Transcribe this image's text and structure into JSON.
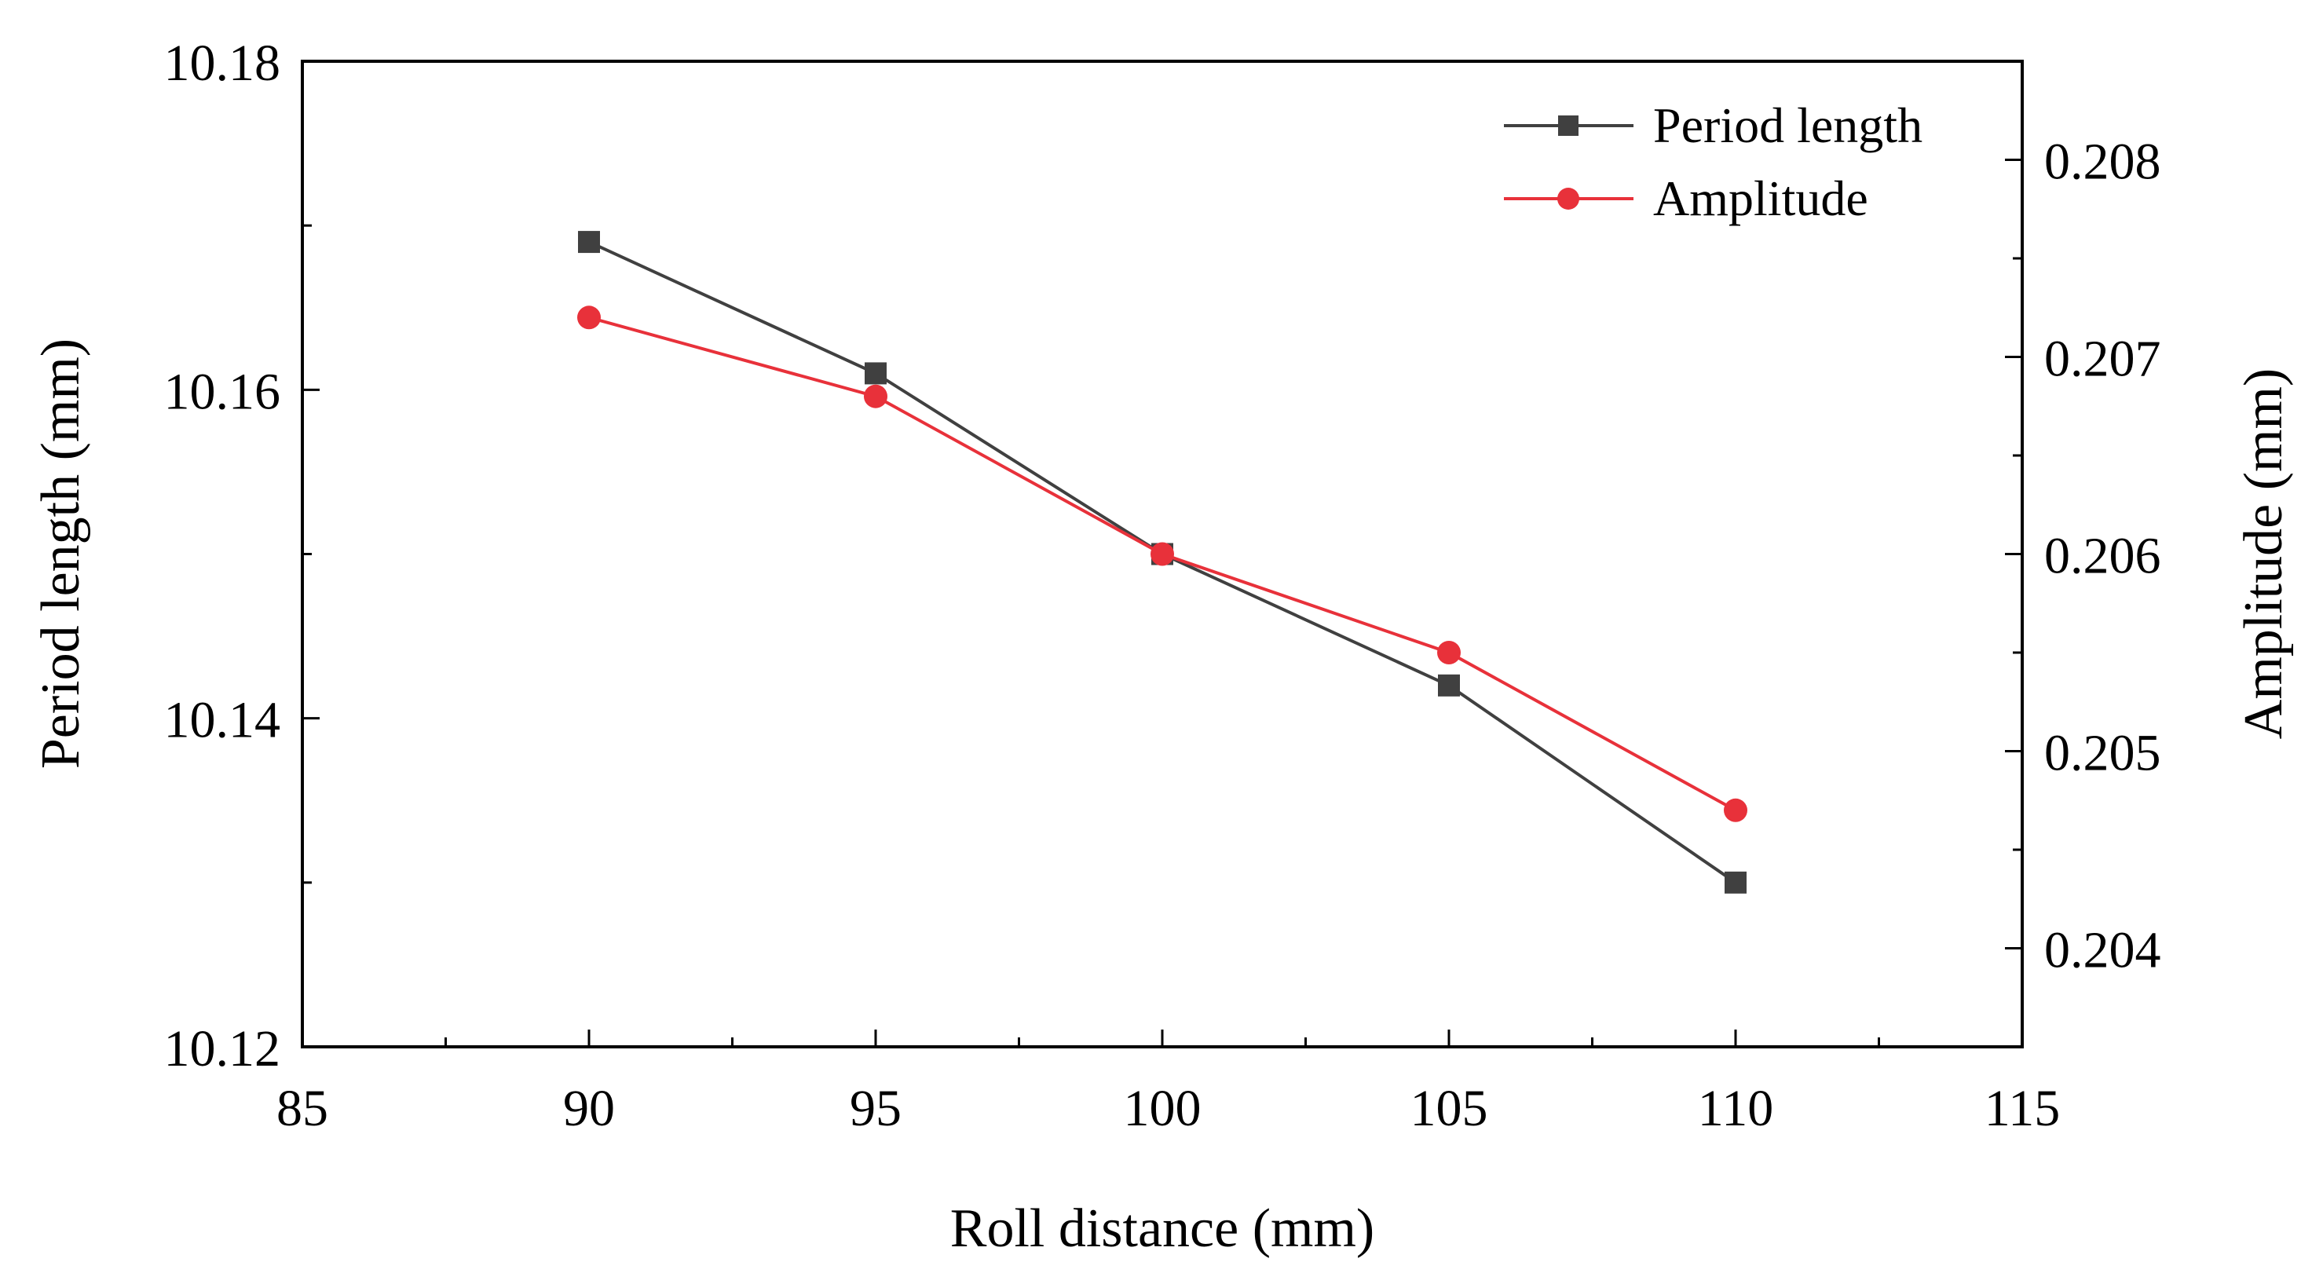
{
  "chart_data": {
    "type": "line",
    "title": "",
    "xlabel": "Roll distance (mm)",
    "ylabel": "Period length (mm)",
    "y2label": "Amplitude (mm)",
    "xlim": [
      85,
      115
    ],
    "ylim": [
      10.12,
      10.18
    ],
    "y2lim": [
      0.2035,
      0.2085
    ],
    "xticks": [
      85,
      90,
      95,
      100,
      105,
      110,
      115
    ],
    "xtick_labels": [
      "85",
      "90",
      "95",
      "100",
      "105",
      "110",
      "115"
    ],
    "yticks": [
      10.12,
      10.14,
      10.16,
      10.18
    ],
    "ytick_labels": [
      "10.12",
      "10.14",
      "10.16",
      "10.18"
    ],
    "y2ticks": [
      0.204,
      0.205,
      0.206,
      0.207,
      0.208
    ],
    "y2tick_labels": [
      "0.204",
      "0.205",
      "0.206",
      "0.207",
      "0.208"
    ],
    "x": [
      90,
      95,
      100,
      105,
      110
    ],
    "series": [
      {
        "name": "Period length",
        "axis": "left",
        "marker": "square",
        "color": "#404040",
        "values": [
          10.169,
          10.161,
          10.15,
          10.142,
          10.13
        ]
      },
      {
        "name": "Amplitude",
        "axis": "right",
        "marker": "circle",
        "color": "#e8313a",
        "values": [
          0.2072,
          0.2068,
          0.206,
          0.2055,
          0.2047
        ]
      }
    ],
    "legend_position": "top-right",
    "grid": false
  }
}
